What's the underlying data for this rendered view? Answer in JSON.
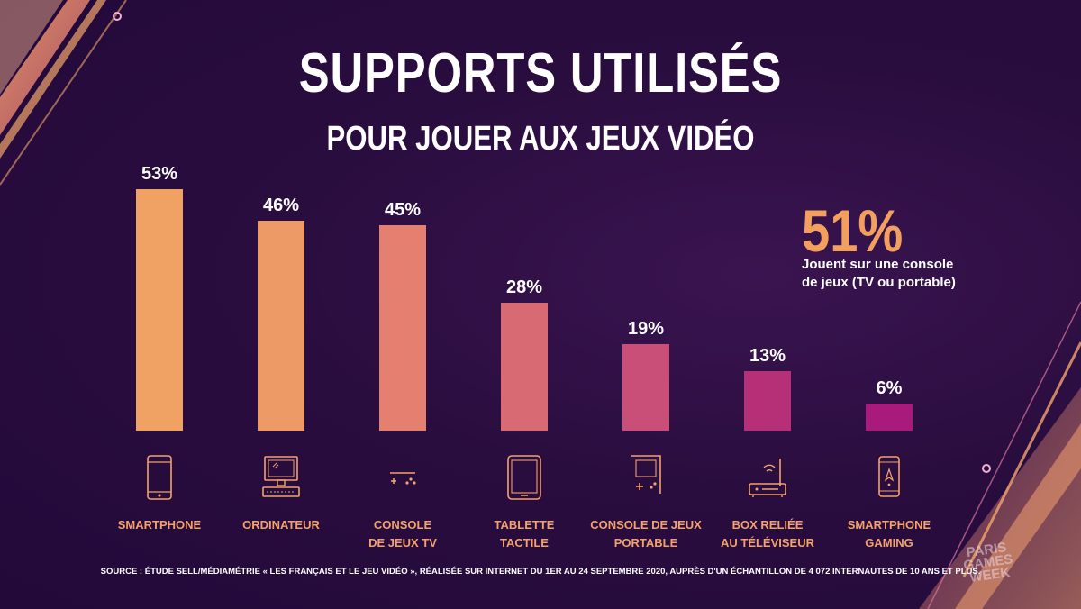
{
  "title": "SUPPORTS UTILISÉS",
  "subtitle": "POUR JOUER AUX JEUX VIDÉO",
  "callout": {
    "value": "51%",
    "text_line1": "Jouent sur une console",
    "text_line2": "de jeux (TV ou portable)"
  },
  "source": "SOURCE : ÉTUDE SELL/MÉDIAMÉTRIE « LES FRANÇAIS ET LE JEU VIDÉO », RÉALISÉE SUR INTERNET DU 1ER AU 24 SEPTEMBRE 2020, AUPRÈS D'UN ÉCHANTILLON DE 4 072 INTERNAUTES DE 10 ANS ET PLUS.",
  "logo": {
    "line1": "PARIS",
    "line2": "GAMES",
    "line3": "WEEK"
  },
  "colors": {
    "background": "#22093a",
    "accent_orange": "#f3a05f",
    "bars": [
      "#f0a164",
      "#ee9a66",
      "#e58070",
      "#d86a74",
      "#c94f78",
      "#b63078",
      "#a81a7c"
    ]
  },
  "chart_data": {
    "type": "bar",
    "categories": [
      {
        "line1": "SMARTPHONE",
        "line2": ""
      },
      {
        "line1": "ORDINATEUR",
        "line2": ""
      },
      {
        "line1": "CONSOLE",
        "line2": "DE JEUX TV"
      },
      {
        "line1": "TABLETTE",
        "line2": "TACTILE"
      },
      {
        "line1": "CONSOLE DE JEUX",
        "line2": "PORTABLE"
      },
      {
        "line1": "BOX RELIÉE",
        "line2": "AU TÉLÉVISEUR"
      },
      {
        "line1": "SMARTPHONE",
        "line2": "GAMING"
      }
    ],
    "values": [
      53,
      46,
      45,
      28,
      19,
      13,
      6
    ],
    "labels": [
      "53%",
      "46%",
      "45%",
      "28%",
      "19%",
      "13%",
      "6%"
    ],
    "icons": [
      "smartphone-icon",
      "computer-icon",
      "gamepad-icon",
      "tablet-icon",
      "handheld-console-icon",
      "set-top-box-icon",
      "gaming-phone-icon"
    ],
    "title": "SUPPORTS UTILISÉS",
    "xlabel": "",
    "ylabel": "",
    "ylim": [
      0,
      53
    ],
    "grid": false,
    "legend": "none"
  }
}
